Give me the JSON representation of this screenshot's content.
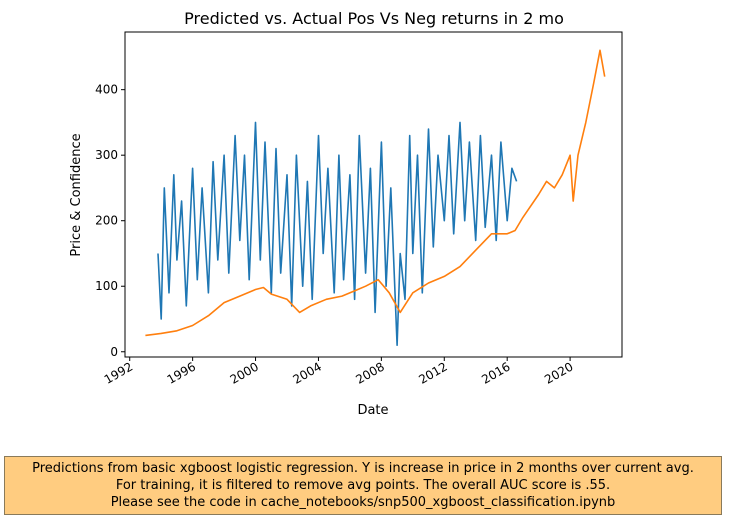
{
  "chart_data": {
    "type": "line",
    "title": "Predicted vs. Actual Pos Vs Neg returns in 2 mo",
    "xlabel": "Date",
    "ylabel": "Price & Confidence",
    "xlim": [
      1991.7,
      2023.3
    ],
    "ylim": [
      -8,
      488
    ],
    "x_ticks": [
      1992,
      1996,
      2000,
      2004,
      2008,
      2012,
      2016,
      2020
    ],
    "x_tick_labels": [
      "1992",
      "1996",
      "2000",
      "2004",
      "2008",
      "2012",
      "2016",
      "2020"
    ],
    "y_ticks": [
      0,
      100,
      200,
      300,
      400
    ],
    "y_tick_labels": [
      "0",
      "100",
      "200",
      "300",
      "400"
    ],
    "grid": false,
    "series": [
      {
        "color": "#1f77b4",
        "x": [
          1993.8,
          1994.0,
          1994.2,
          1994.5,
          1994.8,
          1995.0,
          1995.3,
          1995.6,
          1996.0,
          1996.3,
          1996.6,
          1997.0,
          1997.3,
          1997.6,
          1998.0,
          1998.3,
          1998.7,
          1999.0,
          1999.3,
          1999.6,
          2000.0,
          2000.3,
          2000.6,
          2001.0,
          2001.3,
          2001.6,
          2002.0,
          2002.3,
          2002.6,
          2003.0,
          2003.3,
          2003.6,
          2004.0,
          2004.3,
          2004.6,
          2005.0,
          2005.3,
          2005.6,
          2006.0,
          2006.3,
          2006.6,
          2007.0,
          2007.3,
          2007.6,
          2008.0,
          2008.3,
          2008.6,
          2009.0,
          2009.2,
          2009.5,
          2009.8,
          2010.0,
          2010.3,
          2010.6,
          2011.0,
          2011.3,
          2011.6,
          2012.0,
          2012.3,
          2012.6,
          2013.0,
          2013.3,
          2013.6,
          2014.0,
          2014.3,
          2014.6,
          2015.0,
          2015.3,
          2015.6,
          2016.0,
          2016.3,
          2016.6
        ],
        "y": [
          150,
          50,
          250,
          90,
          270,
          140,
          230,
          70,
          280,
          110,
          250,
          90,
          290,
          140,
          300,
          120,
          330,
          170,
          300,
          110,
          350,
          140,
          320,
          90,
          310,
          120,
          270,
          70,
          300,
          100,
          260,
          80,
          330,
          150,
          280,
          90,
          300,
          110,
          270,
          80,
          330,
          120,
          280,
          60,
          320,
          100,
          250,
          10,
          150,
          80,
          330,
          150,
          300,
          90,
          340,
          160,
          300,
          200,
          330,
          180,
          350,
          200,
          320,
          170,
          330,
          190,
          300,
          170,
          320,
          200,
          280,
          260
        ]
      },
      {
        "color": "#ff7f0e",
        "x": [
          1993.0,
          1994.0,
          1995.0,
          1996.0,
          1997.0,
          1998.0,
          1999.0,
          2000.0,
          2000.5,
          2001.0,
          2002.0,
          2002.8,
          2003.5,
          2004.5,
          2005.5,
          2006.5,
          2007.0,
          2007.8,
          2008.5,
          2009.2,
          2010.0,
          2011.0,
          2012.0,
          2013.0,
          2014.0,
          2015.0,
          2016.0,
          2016.5,
          2017.0,
          2018.0,
          2018.5,
          2019.0,
          2019.5,
          2020.0,
          2020.2,
          2020.5,
          2021.0,
          2021.5,
          2021.9,
          2022.2
        ],
        "y": [
          25,
          28,
          32,
          40,
          55,
          75,
          85,
          95,
          98,
          88,
          80,
          60,
          70,
          80,
          85,
          95,
          100,
          110,
          90,
          60,
          90,
          105,
          115,
          130,
          155,
          180,
          180,
          185,
          205,
          240,
          260,
          250,
          270,
          300,
          230,
          300,
          350,
          410,
          460,
          420
        ]
      }
    ]
  },
  "caption": {
    "lines": [
      "Predictions from basic xgboost logistic regression. Y is increase in price in 2 months over current avg.",
      "For training, it is filtered to remove avg points. The overall AUC score is .55.",
      "Please see the code in cache_notebooks/snp500_xgboost_classification.ipynb"
    ]
  }
}
